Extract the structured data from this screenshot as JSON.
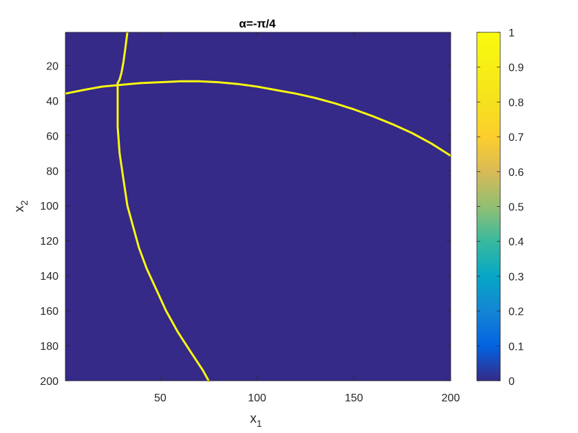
{
  "chart_data": {
    "type": "heatmap",
    "title": "α=-π/4",
    "xlabel": "x₁",
    "ylabel": "x₂",
    "xlim": [
      1,
      200
    ],
    "ylim": [
      1,
      200
    ],
    "y_reversed": true,
    "x_ticks": [
      "50",
      "100",
      "150",
      "200"
    ],
    "y_ticks": [
      "20",
      "40",
      "60",
      "80",
      "100",
      "120",
      "140",
      "160",
      "180",
      "200"
    ],
    "colorbar": {
      "colormap": "parula",
      "range": [
        0,
        1
      ],
      "ticks": [
        "0",
        "0.1",
        "0.2",
        "0.3",
        "0.4",
        "0.5",
        "0.6",
        "0.7",
        "0.8",
        "0.9",
        "1"
      ]
    },
    "background_value": 0,
    "curve_value": 1,
    "curves": [
      {
        "x": [
          33,
          32,
          31,
          30,
          29,
          28,
          28,
          28,
          29,
          31,
          33,
          36,
          39,
          43,
          48,
          53,
          59,
          66,
          72,
          75
        ],
        "y": [
          1,
          10,
          18,
          24,
          28,
          30,
          40,
          55,
          70,
          85,
          100,
          112,
          124,
          136,
          148,
          160,
          172,
          184,
          194,
          200
        ]
      },
      {
        "x": [
          1,
          10,
          20,
          30,
          40,
          50,
          60,
          70,
          80,
          90,
          100,
          110,
          120,
          130,
          140,
          150,
          160,
          170,
          180,
          190,
          200
        ],
        "y": [
          36,
          34,
          32,
          31,
          30,
          29.5,
          29,
          29,
          29.5,
          30.5,
          32,
          34,
          36,
          38.5,
          41.5,
          45,
          49,
          53.5,
          58.5,
          64.5,
          71.5
        ]
      }
    ]
  }
}
